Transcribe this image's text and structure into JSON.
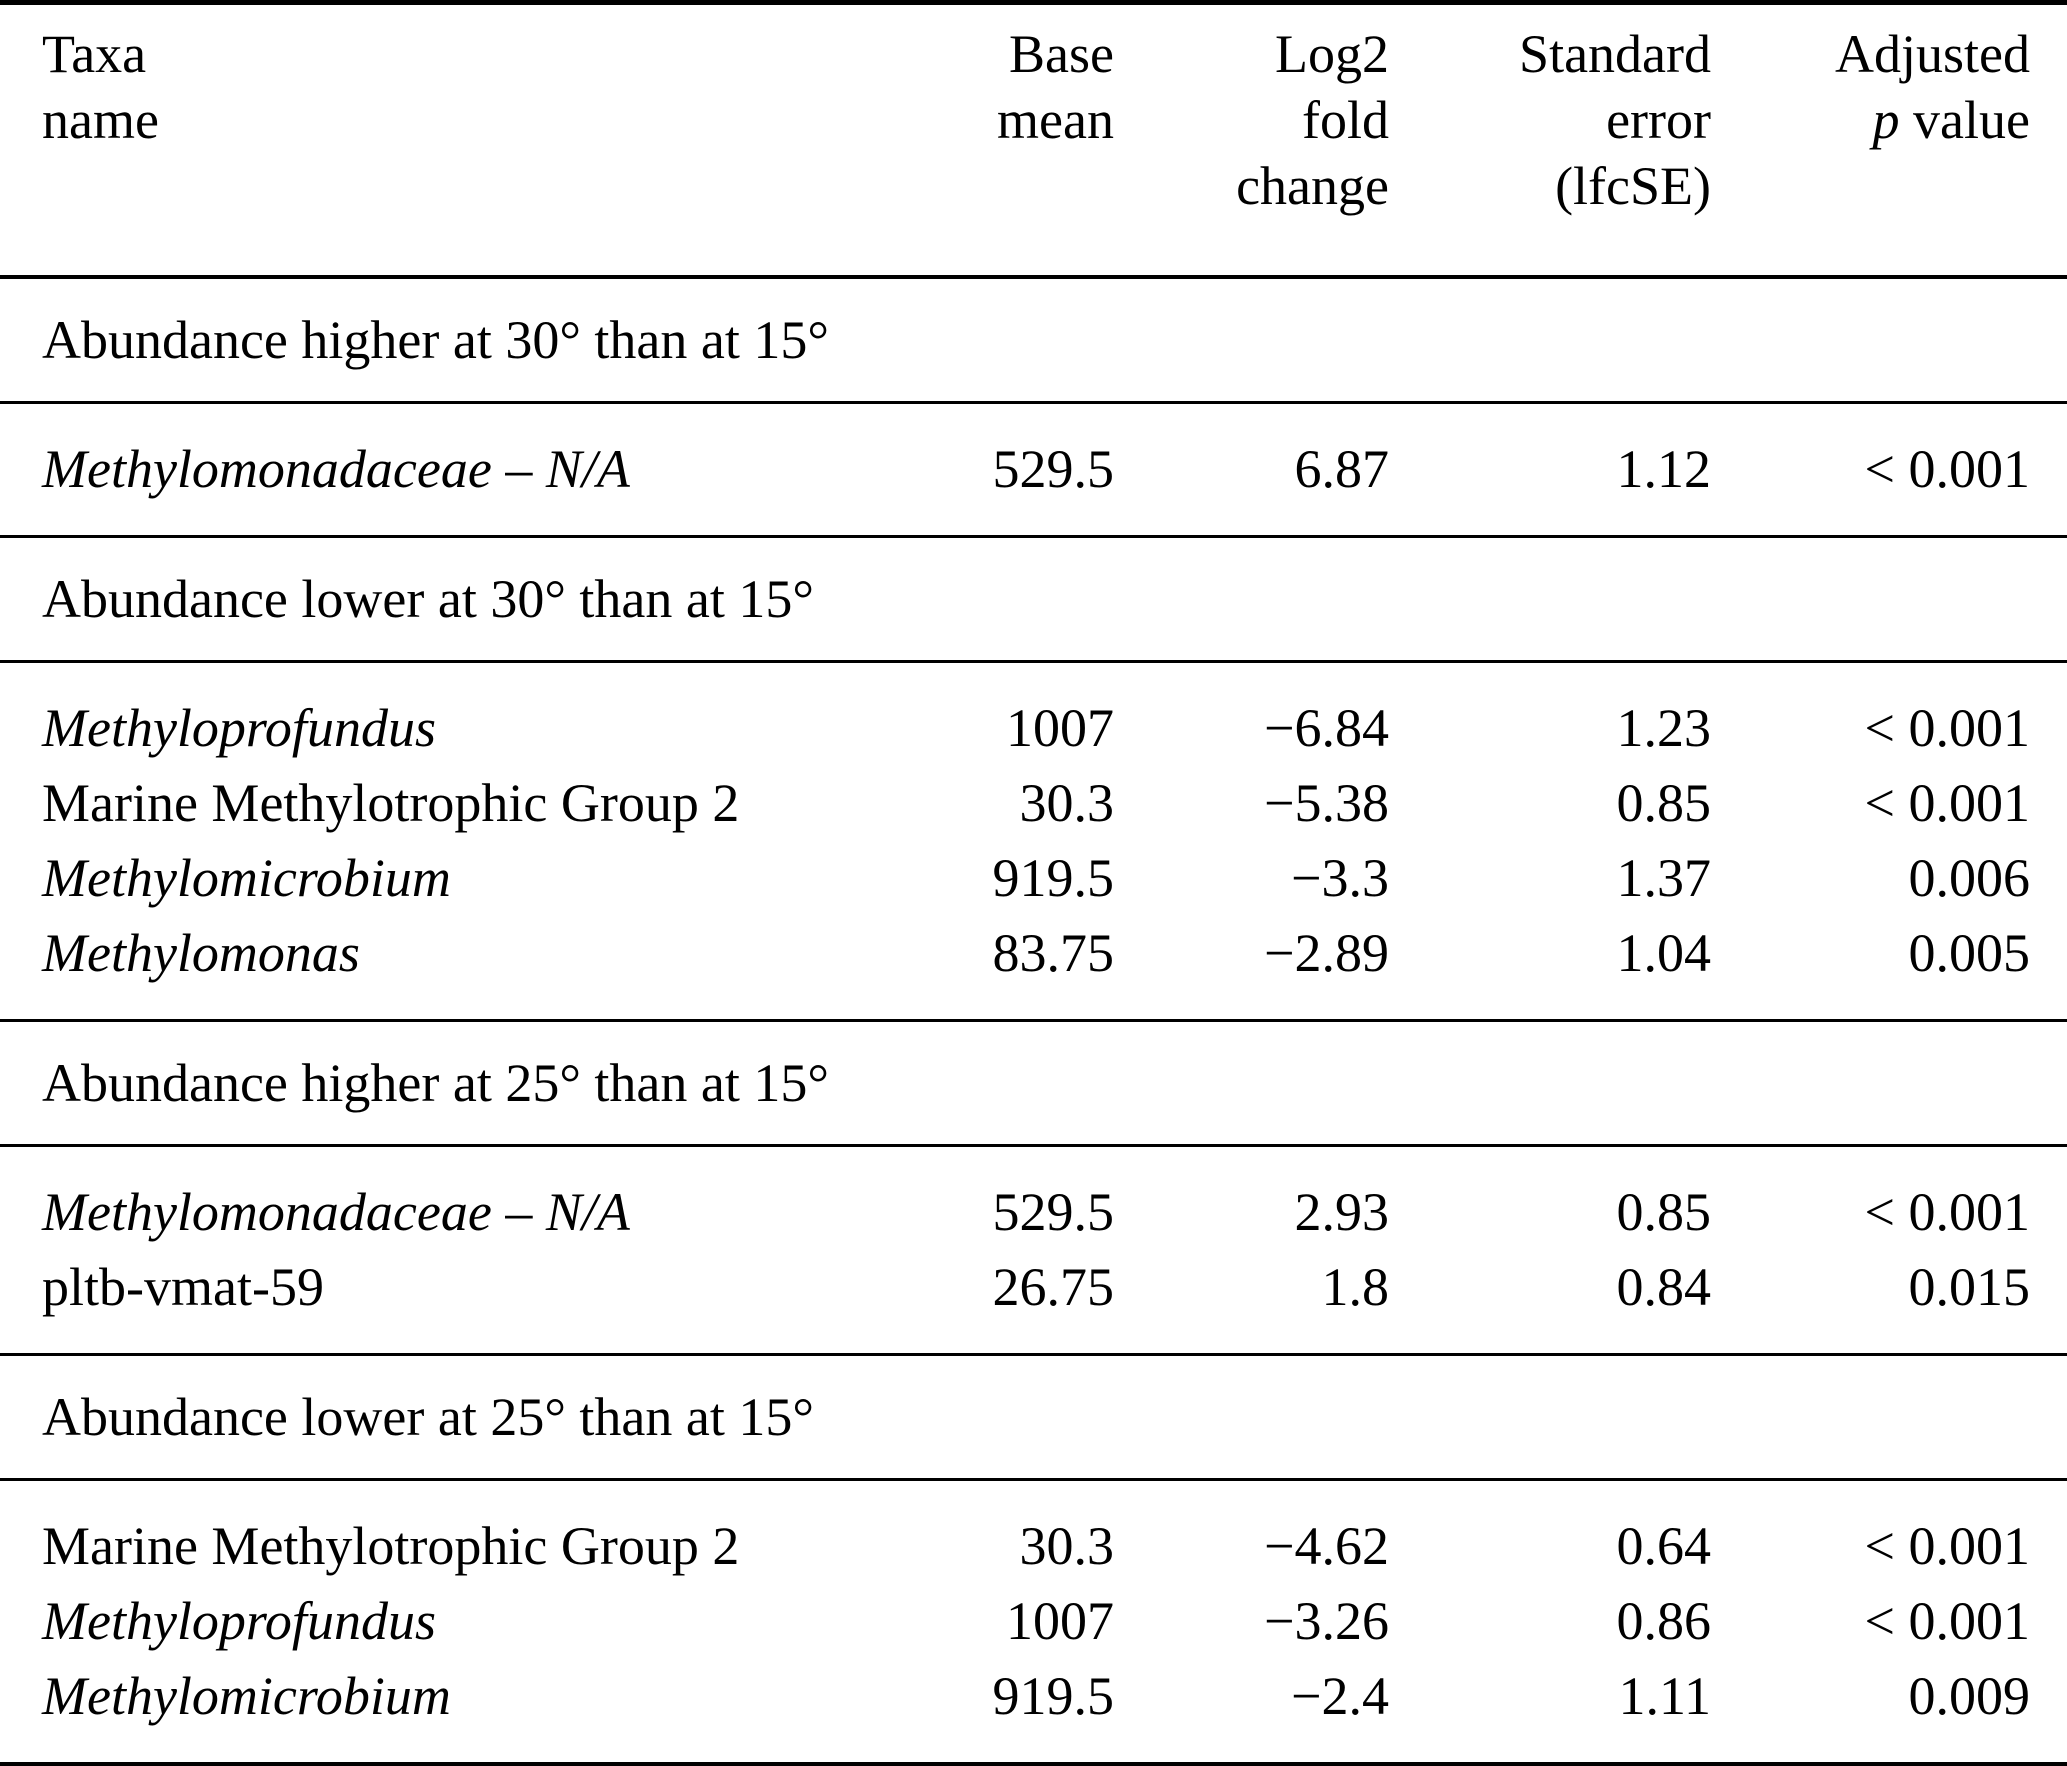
{
  "table": {
    "columns": [
      {
        "id": "taxa",
        "label": "Taxa\nname"
      },
      {
        "id": "base-mean",
        "label": "Base\nmean"
      },
      {
        "id": "log2fc",
        "label": "Log2\nfold\nchange"
      },
      {
        "id": "lfcse",
        "label": "Standard\nerror\n(lfcSE)"
      },
      {
        "id": "adj-p",
        "label_parts": [
          {
            "t": "Adjusted\n"
          },
          {
            "t": "p",
            "i": true
          },
          {
            "t": " value"
          }
        ]
      }
    ],
    "sections": [
      {
        "header": "Abundance higher at 30° than at 15°",
        "rows": [
          {
            "name": "Methylomonadaceae – N/A",
            "italic": true,
            "base_mean": "529.5",
            "log2fc": "6.87",
            "lfcse": "1.12",
            "padj": "< 0.001"
          }
        ]
      },
      {
        "header": "Abundance lower at 30° than at 15°",
        "rows": [
          {
            "name": "Methyloprofundus",
            "italic": true,
            "base_mean": "1007",
            "log2fc": "−6.84",
            "lfcse": "1.23",
            "padj": "< 0.001"
          },
          {
            "name": "Marine Methylotrophic Group 2",
            "italic": false,
            "base_mean": "30.3",
            "log2fc": "−5.38",
            "lfcse": "0.85",
            "padj": "< 0.001"
          },
          {
            "name": "Methylomicrobium",
            "italic": true,
            "base_mean": "919.5",
            "log2fc": "−3.3",
            "lfcse": "1.37",
            "padj": "0.006"
          },
          {
            "name": "Methylomonas",
            "italic": true,
            "base_mean": "83.75",
            "log2fc": "−2.89",
            "lfcse": "1.04",
            "padj": "0.005"
          }
        ]
      },
      {
        "header": "Abundance higher at 25° than at 15°",
        "rows": [
          {
            "name": "Methylomonadaceae – N/A",
            "italic": true,
            "base_mean": "529.5",
            "log2fc": "2.93",
            "lfcse": "0.85",
            "padj": "< 0.001"
          },
          {
            "name": "pltb-vmat-59",
            "italic": false,
            "base_mean": "26.75",
            "log2fc": "1.8",
            "lfcse": "0.84",
            "padj": "0.015"
          }
        ]
      },
      {
        "header": "Abundance lower at 25° than at 15°",
        "rows": [
          {
            "name": "Marine Methylotrophic Group 2",
            "italic": false,
            "base_mean": "30.3",
            "log2fc": "−4.62",
            "lfcse": "0.64",
            "padj": "< 0.001"
          },
          {
            "name": "Methyloprofundus",
            "italic": true,
            "base_mean": "1007",
            "log2fc": "−3.26",
            "lfcse": "0.86",
            "padj": "< 0.001"
          },
          {
            "name": "Methylomicrobium",
            "italic": true,
            "base_mean": "919.5",
            "log2fc": "−2.4",
            "lfcse": "1.11",
            "padj": "0.009"
          }
        ]
      }
    ]
  }
}
